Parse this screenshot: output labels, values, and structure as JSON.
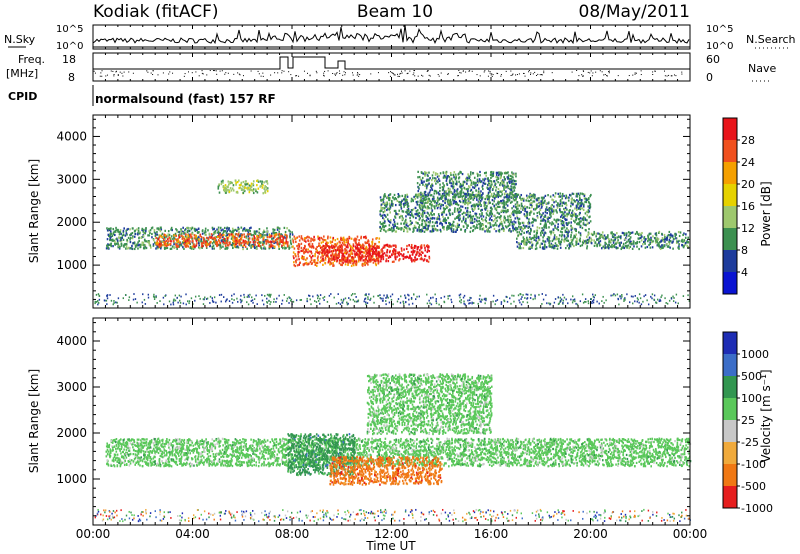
{
  "header": {
    "station": "Kodiak (fitACF)",
    "beam": "Beam 10",
    "date": "08/May/2011"
  },
  "top_strip": {
    "nsky_label": "N.Sky",
    "nsearch_label": "N.Search",
    "left_ticks": [
      "10^5",
      "10^0"
    ],
    "right_ticks": [
      "10^5",
      "10^0"
    ]
  },
  "freq_strip": {
    "freq_label_line1": "Freq.",
    "freq_label_line2": "[MHz]",
    "freq_ticks": [
      "18",
      "8"
    ],
    "nave_label": "Nave",
    "nave_ticks": [
      "60",
      "0"
    ],
    "cpid_label": "CPID",
    "cpid_text": "normalsound (fast) 157 RF"
  },
  "chart_data": [
    {
      "type": "heatmap",
      "title": "Power",
      "ylabel": "Slant Range [km]",
      "xlabel": "",
      "xlim": [
        "00:00",
        "24:00"
      ],
      "ylim": [
        0,
        4500
      ],
      "yticks": [
        1000,
        2000,
        3000,
        4000
      ],
      "colorbar_label": "Power [dB]",
      "colorbar_ticks": [
        "28",
        "24",
        "20",
        "16",
        "12",
        "8",
        "4"
      ],
      "colorbar_colors": [
        "#e8141a",
        "#f0501e",
        "#f5a000",
        "#e6d200",
        "#9ec86e",
        "#3c9050",
        "#1e3c9c",
        "#0a14d2"
      ],
      "regions": [
        {
          "x": [
            0.5,
            8.0
          ],
          "range": [
            1400,
            1900
          ],
          "level": 8
        },
        {
          "x": [
            2.5,
            7.8
          ],
          "range": [
            1450,
            1750
          ],
          "level": 24
        },
        {
          "x": [
            8.0,
            11.5
          ],
          "range": [
            1000,
            1700
          ],
          "level": 24
        },
        {
          "x": [
            9.2,
            13.5
          ],
          "range": [
            1100,
            1500
          ],
          "level": 28
        },
        {
          "x": [
            5.0,
            7.0
          ],
          "range": [
            2700,
            3000
          ],
          "level": 12
        },
        {
          "x": [
            11.5,
            20.0
          ],
          "range": [
            1800,
            2700
          ],
          "level": 8
        },
        {
          "x": [
            13.0,
            17.0
          ],
          "range": [
            2600,
            3200
          ],
          "level": 8
        },
        {
          "x": [
            17.0,
            23.9
          ],
          "range": [
            1400,
            1800
          ],
          "level": 8
        }
      ]
    },
    {
      "type": "heatmap",
      "title": "Velocity",
      "ylabel": "Slant Range [km]",
      "xlabel": "Time UT",
      "xlim": [
        "00:00",
        "24:00"
      ],
      "ylim": [
        0,
        4500
      ],
      "yticks": [
        1000,
        2000,
        3000,
        4000
      ],
      "xticks": [
        "00:00",
        "04:00",
        "08:00",
        "12:00",
        "16:00",
        "20:00",
        "00:00"
      ],
      "colorbar_label": "Velocity [m s⁻¹]",
      "colorbar_ticks": [
        "1000",
        "500",
        "100",
        "25",
        "-25",
        "-100",
        "-500",
        "-1000"
      ],
      "colorbar_colors": [
        "#1e2db4",
        "#3c6ec8",
        "#329650",
        "#5ac85a",
        "#c8c8c8",
        "#f0aa3c",
        "#f07814",
        "#e61e1e"
      ],
      "regions": [
        {
          "x": [
            0.5,
            24.0
          ],
          "range": [
            1300,
            1900
          ],
          "level": "25"
        },
        {
          "x": [
            7.8,
            10.5
          ],
          "range": [
            1100,
            2000
          ],
          "level": "100"
        },
        {
          "x": [
            9.5,
            14.0
          ],
          "range": [
            900,
            1500
          ],
          "level": "-500"
        },
        {
          "x": [
            11.0,
            16.0
          ],
          "range": [
            2000,
            3300
          ],
          "level": "25"
        }
      ]
    }
  ]
}
